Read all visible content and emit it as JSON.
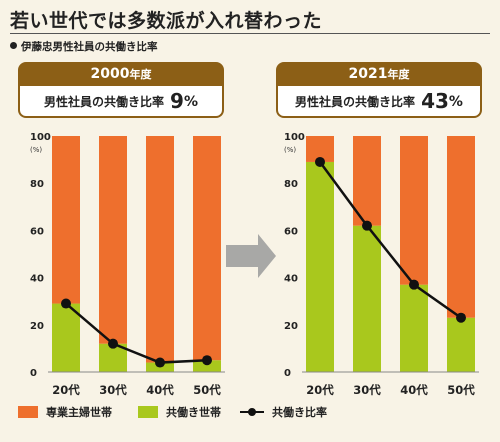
{
  "title": "若い世代では多数派が入れ替わった",
  "subtitle": "伊藤忠男性社員の共働き比率",
  "colors": {
    "sengyo": "#ee6f2d",
    "tomobataraki": "#a9c81d",
    "line": "#111111",
    "header": "#8c5f16",
    "arrow": "#9a9a9a"
  },
  "panels": [
    {
      "year": "2000",
      "year_suffix": "年度",
      "stat_label": "男性社員の共働き比率",
      "stat_value": "9",
      "stat_unit": "%"
    },
    {
      "year": "2021",
      "year_suffix": "年度",
      "stat_label": "男性社員の共働き比率",
      "stat_value": "43",
      "stat_unit": "%"
    }
  ],
  "legend": {
    "sengyo": "専業主婦世帯",
    "tomobataraki": "共働き世帯",
    "ratio": "共働き比率"
  },
  "chart_data": [
    {
      "type": "bar",
      "title": "2000年度",
      "categories": [
        "20代",
        "30代",
        "40代",
        "50代"
      ],
      "series": [
        {
          "name": "共働き世帯",
          "values": [
            29,
            12,
            4,
            5
          ]
        },
        {
          "name": "専業主婦世帯",
          "values": [
            71,
            88,
            96,
            95
          ]
        },
        {
          "name": "共働き比率",
          "type": "line",
          "values": [
            29,
            12,
            4,
            5
          ]
        }
      ],
      "ylim": [
        0,
        100
      ],
      "yticks": [
        0,
        20,
        40,
        60,
        80,
        100
      ],
      "ylabel": "(%)"
    },
    {
      "type": "bar",
      "title": "2021年度",
      "categories": [
        "20代",
        "30代",
        "40代",
        "50代"
      ],
      "series": [
        {
          "name": "共働き世帯",
          "values": [
            89,
            62,
            37,
            23
          ]
        },
        {
          "name": "専業主婦世帯",
          "values": [
            11,
            38,
            63,
            77
          ]
        },
        {
          "name": "共働き比率",
          "type": "line",
          "values": [
            89,
            62,
            37,
            23
          ]
        }
      ],
      "ylim": [
        0,
        100
      ],
      "yticks": [
        0,
        20,
        40,
        60,
        80,
        100
      ],
      "ylabel": "(%)"
    }
  ]
}
